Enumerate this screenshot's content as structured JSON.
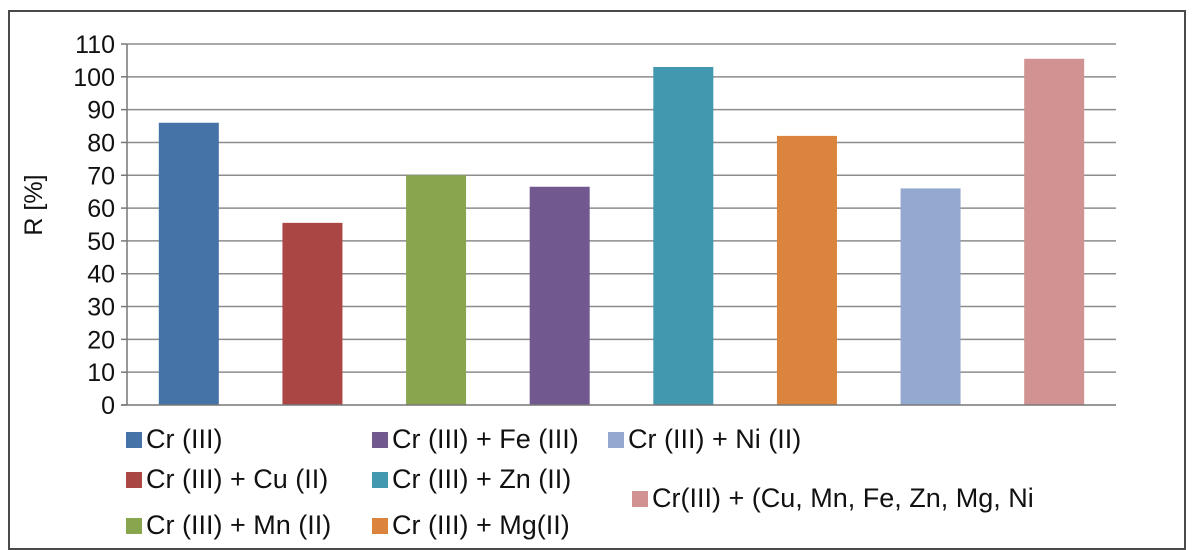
{
  "chart_data": {
    "type": "bar",
    "title": "",
    "xlabel": "",
    "ylabel": "R [%]",
    "ylim": [
      0,
      110
    ],
    "yticks": [
      "0",
      "10",
      "20",
      "30",
      "40",
      "50",
      "60",
      "70",
      "80",
      "90",
      "100",
      "110"
    ],
    "grid": true,
    "legend_position": "bottom",
    "series": [
      {
        "name": "Cr (III)",
        "value": 86,
        "color": "#4572a7"
      },
      {
        "name": "Cr (III) + Cu (II)",
        "value": 55.5,
        "color": "#aa4643"
      },
      {
        "name": "Cr (III) + Mn (II)",
        "value": 70,
        "color": "#89a54e"
      },
      {
        "name": "Cr (III) + Fe (III)",
        "value": 66.5,
        "color": "#71588f"
      },
      {
        "name": "Cr (III) + Zn (II)",
        "value": 103,
        "color": "#4198af"
      },
      {
        "name": "Cr (III) + Mg(II)",
        "value": 82,
        "color": "#db843d"
      },
      {
        "name": "Cr (III) + Ni (II)",
        "value": 66,
        "color": "#93a9cf"
      },
      {
        "name": "Cr(III) + (Cu, Mn, Fe, Zn, Mg, Ni",
        "value": 105.5,
        "color": "#d19392"
      }
    ]
  }
}
